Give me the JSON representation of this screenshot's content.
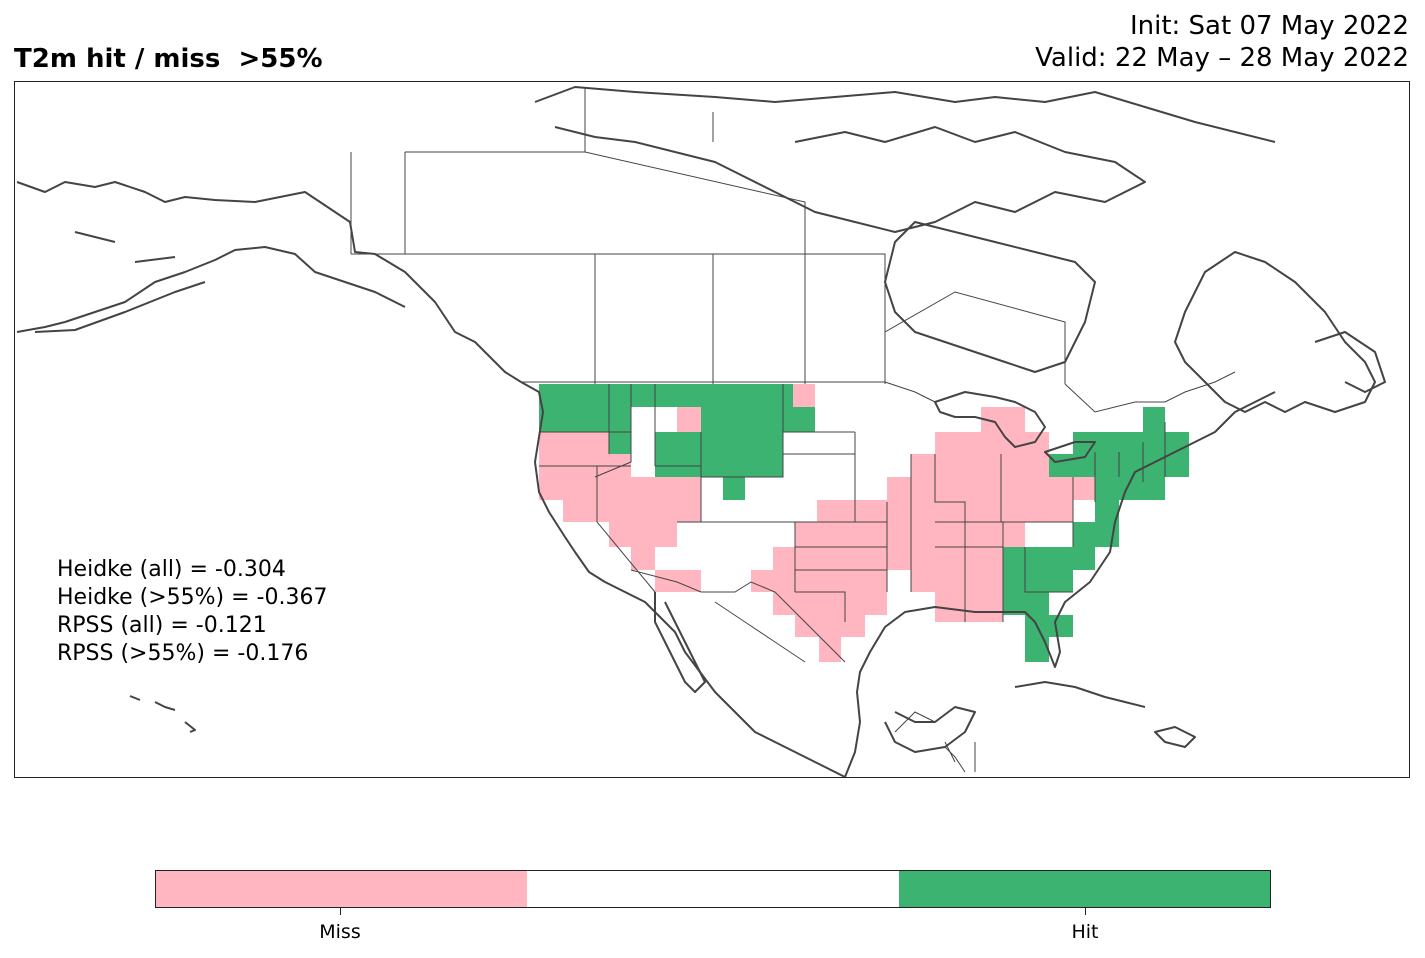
{
  "title": "T2m hit / miss  >55%",
  "init_line": "Init: Sat 07 May 2022",
  "valid_line": "Valid: 22 May – 28 May 2022",
  "stats": [
    "Heidke (all) = -0.304",
    "Heidke (>55%) = -0.367",
    "RPSS (all) = -0.121",
    "RPSS (>55%) = -0.176"
  ],
  "legend": {
    "categories": [
      "Miss",
      "",
      "Hit"
    ],
    "colors": [
      "#ffb6c1",
      "#ffffff",
      "#3cb371"
    ],
    "tick_labels": [
      "Miss",
      "Hit"
    ]
  },
  "map": {
    "region": "North America",
    "cell_types": {
      "miss": "#ffb6c1",
      "hit": "#3cb371"
    },
    "line_color": "#444444"
  }
}
